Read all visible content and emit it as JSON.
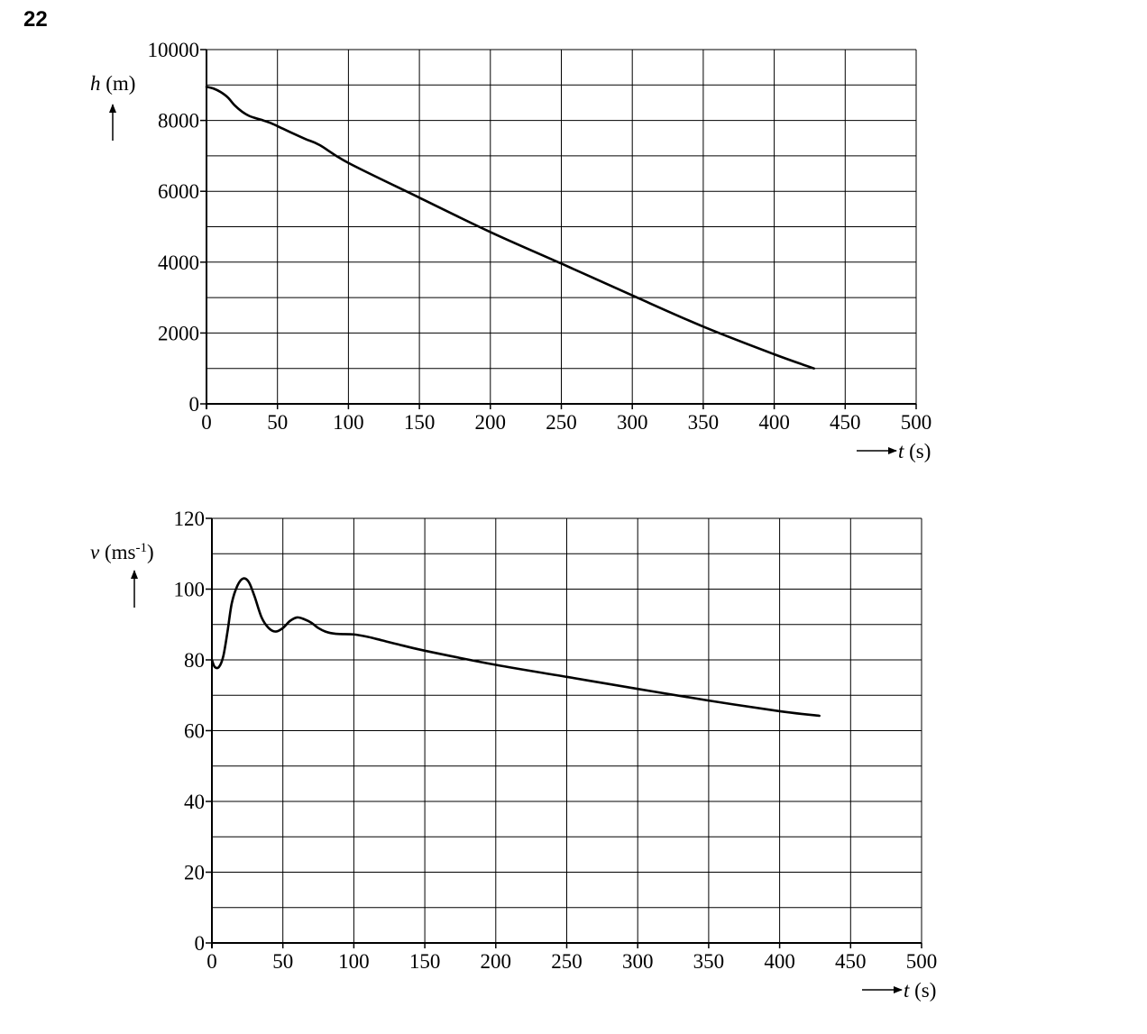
{
  "question_number": "22",
  "chart_data": [
    {
      "type": "line",
      "title": "",
      "ylabel": {
        "var": "h",
        "unit": " (m)"
      },
      "xlabel": {
        "var": "t",
        "unit": " (s)"
      },
      "xlim": [
        0,
        500
      ],
      "ylim": [
        0,
        10000
      ],
      "xticks": [
        0,
        50,
        100,
        150,
        200,
        250,
        300,
        350,
        400,
        450,
        500
      ],
      "yticks": [
        0,
        2000,
        4000,
        6000,
        8000,
        10000
      ],
      "grid": true,
      "series": [
        {
          "x": [
            0,
            5,
            10,
            15,
            20,
            25,
            30,
            35,
            40,
            45,
            50,
            60,
            70,
            80,
            100,
            150,
            200,
            250,
            300,
            350,
            400,
            428
          ],
          "y": [
            8950,
            8900,
            8800,
            8650,
            8420,
            8250,
            8130,
            8060,
            8000,
            7930,
            7840,
            7650,
            7470,
            7300,
            6800,
            5820,
            4850,
            3960,
            3060,
            2180,
            1400,
            1000
          ]
        }
      ]
    },
    {
      "type": "line",
      "title": "",
      "ylabel": {
        "var": "v",
        "unit": " (ms",
        "sup": "-1",
        "close": ")"
      },
      "xlabel": {
        "var": "t",
        "unit": " (s)"
      },
      "xlim": [
        0,
        500
      ],
      "ylim": [
        0,
        120
      ],
      "xticks": [
        0,
        50,
        100,
        150,
        200,
        250,
        300,
        350,
        400,
        450,
        500
      ],
      "yticks": [
        0,
        20,
        40,
        60,
        80,
        100,
        120
      ],
      "grid": true,
      "series": [
        {
          "x": [
            0,
            2,
            5,
            8,
            11,
            14,
            18,
            22,
            26,
            30,
            35,
            40,
            45,
            50,
            55,
            60,
            65,
            70,
            75,
            80,
            85,
            90,
            100,
            110,
            120,
            130,
            150,
            200,
            250,
            300,
            350,
            400,
            428
          ],
          "y": [
            80,
            78,
            78,
            81,
            88,
            96,
            101,
            103,
            102,
            98,
            92,
            89,
            88,
            89,
            91,
            92,
            91.5,
            90.5,
            89,
            88,
            87.5,
            87.3,
            87.2,
            86.5,
            85.5,
            84.5,
            82.6,
            78.6,
            75.2,
            71.8,
            68.5,
            65.5,
            64.2
          ]
        }
      ]
    }
  ]
}
